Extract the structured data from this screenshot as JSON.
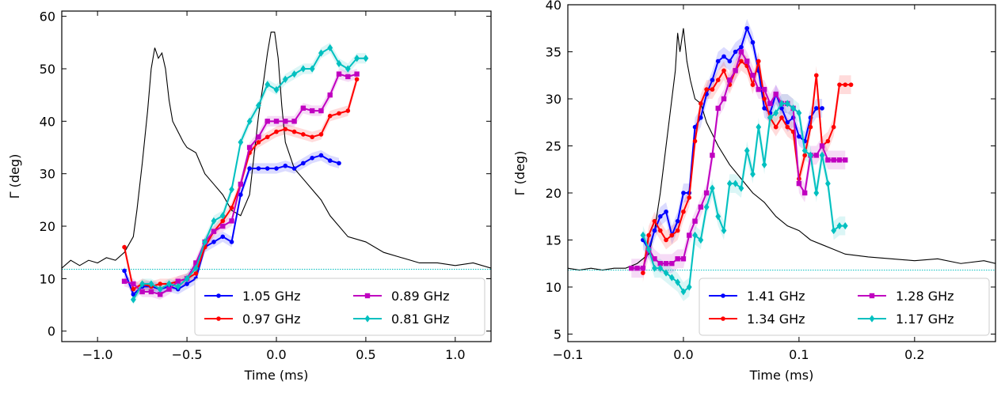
{
  "chart_data": [
    {
      "type": "line",
      "xlabel": "Time (ms)",
      "ylabel": "Γ (deg)",
      "xlim": [
        -1.2,
        1.2
      ],
      "ylim": [
        -2,
        61
      ],
      "xticks": [
        -1.0,
        -0.5,
        0.0,
        0.5,
        1.0
      ],
      "xtick_labels": [
        "−1.0",
        "−0.5",
        "0.0",
        "0.5",
        "1.0"
      ],
      "yticks": [
        0,
        10,
        20,
        30,
        40,
        50,
        60
      ],
      "ytick_labels": [
        "0",
        "10",
        "20",
        "30",
        "40",
        "50",
        "60"
      ],
      "baseline_y": 11.8,
      "baseline_color": "#00bfbf",
      "grid": false,
      "legend_placement": "lower-right",
      "legend_columns": 2,
      "profile": {
        "color": "#000000",
        "x": [
          -1.2,
          -1.15,
          -1.1,
          -1.05,
          -1.0,
          -0.95,
          -0.9,
          -0.85,
          -0.8,
          -0.78,
          -0.75,
          -0.72,
          -0.7,
          -0.68,
          -0.66,
          -0.64,
          -0.62,
          -0.6,
          -0.58,
          -0.55,
          -0.52,
          -0.5,
          -0.45,
          -0.4,
          -0.35,
          -0.3,
          -0.25,
          -0.2,
          -0.15,
          -0.12,
          -0.1,
          -0.07,
          -0.05,
          -0.03,
          -0.01,
          0.01,
          0.03,
          0.05,
          0.08,
          0.1,
          0.15,
          0.2,
          0.25,
          0.3,
          0.4,
          0.5,
          0.6,
          0.7,
          0.8,
          0.9,
          1.0,
          1.1,
          1.2
        ],
        "y": [
          12,
          13.5,
          12.5,
          13.5,
          13,
          14,
          13.5,
          15,
          18,
          23,
          32,
          42,
          50,
          54,
          52,
          53,
          50,
          44,
          40,
          38,
          36,
          35,
          34,
          30,
          28,
          26,
          23,
          22,
          26,
          35,
          41,
          48,
          53,
          57,
          57,
          52,
          43,
          36,
          33,
          31,
          29,
          27,
          25,
          22,
          18,
          17,
          15,
          14,
          13,
          13,
          12.5,
          13,
          12
        ]
      },
      "series": [
        {
          "name": "1.05 GHz",
          "color": "#0000ff",
          "marker": "circle",
          "x": [
            -0.85,
            -0.8,
            -0.75,
            -0.7,
            -0.65,
            -0.6,
            -0.55,
            -0.5,
            -0.45,
            -0.4,
            -0.35,
            -0.3,
            -0.25,
            -0.2,
            -0.15,
            -0.1,
            -0.05,
            0.0,
            0.05,
            0.1,
            0.15,
            0.2,
            0.25,
            0.3,
            0.35
          ],
          "y": [
            11.5,
            7,
            8.5,
            8.5,
            8,
            8.5,
            8,
            9,
            10,
            16,
            17,
            18,
            17,
            26,
            31,
            31,
            31,
            31,
            31.5,
            31,
            32,
            33,
            33.5,
            32.5,
            32
          ]
        },
        {
          "name": "0.97 GHz",
          "color": "#ff0000",
          "marker": "circle",
          "x": [
            -0.85,
            -0.8,
            -0.75,
            -0.7,
            -0.65,
            -0.6,
            -0.55,
            -0.5,
            -0.45,
            -0.4,
            -0.35,
            -0.3,
            -0.25,
            -0.2,
            -0.15,
            -0.1,
            -0.05,
            0.0,
            0.05,
            0.1,
            0.15,
            0.2,
            0.25,
            0.3,
            0.35,
            0.4,
            0.45
          ],
          "y": [
            16,
            8,
            9,
            8.5,
            9,
            9,
            9.5,
            10,
            11,
            16,
            19,
            21,
            23.5,
            28,
            34,
            36,
            37,
            38,
            38.5,
            38,
            37.5,
            37,
            37.5,
            41,
            41.5,
            42,
            48
          ]
        },
        {
          "name": "0.89 GHz",
          "color": "#c000c0",
          "marker": "square",
          "x": [
            -0.85,
            -0.8,
            -0.75,
            -0.7,
            -0.65,
            -0.6,
            -0.55,
            -0.5,
            -0.45,
            -0.4,
            -0.35,
            -0.3,
            -0.25,
            -0.2,
            -0.15,
            -0.1,
            -0.05,
            0.0,
            0.05,
            0.1,
            0.15,
            0.2,
            0.25,
            0.3,
            0.35,
            0.4,
            0.45
          ],
          "y": [
            9.5,
            9,
            7.5,
            7.5,
            7,
            8,
            9.5,
            10,
            13,
            17,
            19,
            20,
            21,
            28,
            35,
            37,
            40,
            40,
            40,
            40,
            42.5,
            42,
            42,
            45,
            49,
            48.5,
            49
          ]
        },
        {
          "name": "0.81 GHz",
          "color": "#00c0c0",
          "marker": "diamond",
          "x": [
            -0.8,
            -0.75,
            -0.7,
            -0.65,
            -0.6,
            -0.55,
            -0.5,
            -0.45,
            -0.4,
            -0.35,
            -0.3,
            -0.25,
            -0.2,
            -0.15,
            -0.1,
            -0.05,
            0.0,
            0.05,
            0.1,
            0.15,
            0.2,
            0.25,
            0.3,
            0.35,
            0.4,
            0.45,
            0.5
          ],
          "y": [
            6,
            9,
            9,
            8,
            9,
            8.5,
            10,
            12,
            17,
            21,
            22,
            27,
            36,
            40,
            43,
            47,
            46,
            48,
            49,
            50,
            50,
            53,
            54,
            51,
            50,
            52,
            52
          ]
        }
      ]
    },
    {
      "type": "line",
      "xlabel": "Time (ms)",
      "ylabel": "Γ (deg)",
      "xlim": [
        -0.1,
        0.27
      ],
      "ylim": [
        4.2,
        40
      ],
      "xticks": [
        -0.1,
        0.0,
        0.1,
        0.2
      ],
      "xtick_labels": [
        "−0.1",
        "0.0",
        "0.1",
        "0.2"
      ],
      "yticks": [
        5,
        10,
        15,
        20,
        25,
        30,
        35,
        40
      ],
      "ytick_labels": [
        "5",
        "10",
        "15",
        "20",
        "25",
        "30",
        "35",
        "40"
      ],
      "baseline_y": 11.8,
      "baseline_color": "#00bfbf",
      "grid": false,
      "legend_placement": "lower-right",
      "legend_columns": 2,
      "profile": {
        "color": "#000000",
        "x": [
          -0.1,
          -0.09,
          -0.08,
          -0.07,
          -0.06,
          -0.05,
          -0.04,
          -0.03,
          -0.025,
          -0.02,
          -0.015,
          -0.01,
          -0.007,
          -0.005,
          -0.003,
          0.0,
          0.003,
          0.006,
          0.01,
          0.015,
          0.02,
          0.03,
          0.04,
          0.05,
          0.06,
          0.07,
          0.08,
          0.09,
          0.1,
          0.11,
          0.12,
          0.13,
          0.14,
          0.16,
          0.18,
          0.2,
          0.22,
          0.24,
          0.26,
          0.27
        ],
        "y": [
          12,
          11.8,
          12,
          11.8,
          12,
          12,
          12.5,
          13.5,
          16,
          20,
          25,
          30,
          33,
          37,
          35,
          37.5,
          34,
          32,
          30,
          29.5,
          27.5,
          25,
          23,
          21.5,
          20,
          19,
          17.5,
          16.5,
          16,
          15,
          14.5,
          14,
          13.5,
          13.2,
          13,
          12.8,
          13,
          12.5,
          12.8,
          12.5
        ]
      },
      "series": [
        {
          "name": "1.41 GHz",
          "color": "#0000ff",
          "marker": "circle",
          "x": [
            -0.035,
            -0.03,
            -0.025,
            -0.02,
            -0.015,
            -0.01,
            -0.005,
            0.0,
            0.005,
            0.01,
            0.015,
            0.02,
            0.025,
            0.03,
            0.035,
            0.04,
            0.045,
            0.05,
            0.055,
            0.06,
            0.065,
            0.07,
            0.075,
            0.08,
            0.085,
            0.09,
            0.095,
            0.1,
            0.105,
            0.11,
            0.115,
            0.12
          ],
          "y": [
            15,
            14,
            16,
            17.5,
            18,
            15.5,
            17,
            20,
            20,
            27,
            28,
            30.5,
            32,
            34,
            34.5,
            34,
            35,
            35.5,
            37.5,
            36,
            33,
            29,
            28.5,
            30.5,
            29,
            27.5,
            28,
            26,
            25.5,
            28,
            29,
            29
          ]
        },
        {
          "name": "1.34 GHz",
          "color": "#ff0000",
          "marker": "circle",
          "x": [
            -0.035,
            -0.03,
            -0.025,
            -0.02,
            -0.015,
            -0.01,
            -0.005,
            0.0,
            0.005,
            0.01,
            0.015,
            0.02,
            0.025,
            0.03,
            0.035,
            0.04,
            0.045,
            0.05,
            0.055,
            0.06,
            0.065,
            0.07,
            0.075,
            0.08,
            0.085,
            0.09,
            0.095,
            0.1,
            0.105,
            0.11,
            0.115,
            0.12,
            0.125,
            0.13,
            0.135,
            0.14,
            0.145
          ],
          "y": [
            11.5,
            15.5,
            17,
            16,
            15,
            15.5,
            16,
            18,
            19.5,
            25.5,
            29.5,
            31,
            31,
            32,
            33,
            31.5,
            33,
            34,
            33.5,
            31.5,
            34,
            30,
            28,
            27,
            28,
            27,
            26.5,
            21.5,
            24,
            27,
            32.5,
            25,
            25.5,
            27,
            31.5,
            31.5,
            31.5
          ]
        },
        {
          "name": "1.28 GHz",
          "color": "#c000c0",
          "marker": "square",
          "x": [
            -0.045,
            -0.04,
            -0.035,
            -0.03,
            -0.025,
            -0.02,
            -0.015,
            -0.01,
            -0.005,
            0.0,
            0.005,
            0.01,
            0.015,
            0.02,
            0.025,
            0.03,
            0.035,
            0.04,
            0.045,
            0.05,
            0.055,
            0.06,
            0.065,
            0.07,
            0.075,
            0.08,
            0.085,
            0.09,
            0.095,
            0.1,
            0.105,
            0.11,
            0.115,
            0.12,
            0.125,
            0.13,
            0.135,
            0.14
          ],
          "y": [
            12,
            12,
            12,
            14,
            13,
            12.5,
            12.5,
            12.5,
            13,
            13,
            15.5,
            17,
            18.5,
            20,
            24,
            29,
            30,
            32,
            33,
            35,
            34,
            32.5,
            31,
            31,
            29.5,
            30.5,
            29.5,
            29.5,
            29,
            21,
            20,
            24,
            24,
            25,
            23.5,
            23.5,
            23.5,
            23.5
          ]
        },
        {
          "name": "1.17 GHz",
          "color": "#00c0c0",
          "marker": "diamond",
          "x": [
            -0.035,
            -0.03,
            -0.025,
            -0.02,
            -0.015,
            -0.01,
            -0.005,
            0.0,
            0.005,
            0.01,
            0.015,
            0.02,
            0.025,
            0.03,
            0.035,
            0.04,
            0.045,
            0.05,
            0.055,
            0.06,
            0.065,
            0.07,
            0.075,
            0.08,
            0.085,
            0.09,
            0.095,
            0.1,
            0.105,
            0.11,
            0.115,
            0.12,
            0.125,
            0.13,
            0.135,
            0.14
          ],
          "y": [
            15.5,
            14,
            12,
            12,
            11.5,
            11,
            10.5,
            9.5,
            10,
            15.5,
            15,
            18.5,
            20.5,
            17.5,
            16,
            21,
            21,
            20.5,
            24.5,
            22,
            27,
            23,
            28,
            28.5,
            29.5,
            29.5,
            29,
            28.5,
            24.5,
            24,
            20,
            24,
            21,
            16,
            16.5,
            16.5
          ]
        }
      ]
    }
  ]
}
